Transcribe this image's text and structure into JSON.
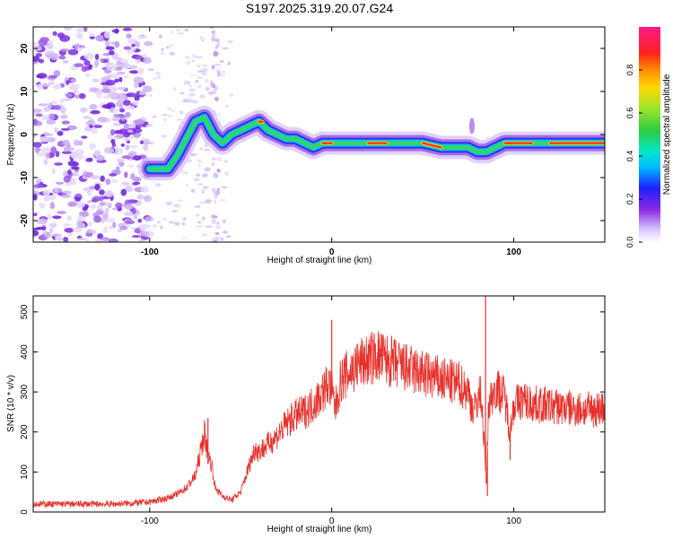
{
  "chart_data": [
    {
      "type": "heatmap",
      "title": "S197.2025.319.20.07.G24",
      "xlabel": "Height of straight line (km)",
      "ylabel": "Frequency (Hz)",
      "xlim": [
        -164,
        150
      ],
      "ylim": [
        -25,
        25
      ],
      "xticks": [
        -100,
        0,
        100
      ],
      "xtick_labels": [
        "-100",
        "0",
        "100"
      ],
      "yticks": [
        -20,
        -10,
        0,
        10,
        20
      ],
      "ytick_labels": [
        "-20",
        "-10",
        "0",
        "10",
        "20"
      ],
      "ridge": {
        "x": [
          -100,
          -95,
          -90,
          -85,
          -80,
          -75,
          -70,
          -65,
          -60,
          -55,
          -50,
          -45,
          -40,
          -35,
          -30,
          -25,
          -20,
          -15,
          -10,
          -5,
          0,
          10,
          20,
          30,
          40,
          50,
          60,
          70,
          75,
          80,
          85,
          90,
          95,
          100,
          110,
          120,
          130,
          140,
          150
        ],
        "y": [
          -8,
          -8,
          -8,
          -5,
          -1,
          3,
          4,
          0,
          -2,
          0,
          1,
          2,
          3,
          1,
          0,
          -1,
          -1,
          -2,
          -3,
          -2,
          -2,
          -2,
          -2,
          -2,
          -2,
          -2,
          -3,
          -3,
          -3,
          -4,
          -4,
          -3,
          -2,
          -2,
          -2,
          -2,
          -2,
          -2,
          -2
        ]
      },
      "colorbar": {
        "label": "Normalized spectral amplitude",
        "range": [
          0,
          1
        ],
        "ticks": [
          0.0,
          0.2,
          0.4,
          0.6,
          0.8
        ],
        "tick_labels": [
          "0.0",
          "0.2",
          "0.4",
          "0.6",
          "0.8"
        ]
      }
    },
    {
      "type": "line",
      "xlabel": "Height of straight line (km)",
      "ylabel": "SNR (10 * v/v)",
      "xlim": [
        -164,
        150
      ],
      "ylim": [
        0,
        540
      ],
      "xticks": [
        -100,
        0,
        100
      ],
      "xtick_labels": [
        "-100",
        "0",
        "100"
      ],
      "yticks": [
        0,
        100,
        200,
        300,
        400,
        500
      ],
      "ytick_labels": [
        "0",
        "100",
        "200",
        "300",
        "400",
        "500"
      ],
      "series": [
        {
          "name": "SNR",
          "color": "#e8302a",
          "x": [
            -164,
            -150,
            -140,
            -130,
            -120,
            -110,
            -100,
            -95,
            -90,
            -85,
            -80,
            -75,
            -72,
            -70,
            -68,
            -66,
            -64,
            -60,
            -55,
            -50,
            -45,
            -42,
            -40,
            -35,
            -30,
            -25,
            -20,
            -15,
            -10,
            -5,
            -2,
            0,
            2,
            5,
            10,
            15,
            20,
            25,
            30,
            35,
            40,
            50,
            60,
            70,
            75,
            78,
            80,
            82,
            84,
            85,
            86,
            88,
            90,
            95,
            98,
            100,
            105,
            110,
            120,
            130,
            140,
            150
          ],
          "y": [
            20,
            20,
            20,
            20,
            20,
            22,
            25,
            30,
            35,
            45,
            60,
            90,
            150,
            200,
            140,
            120,
            60,
            40,
            30,
            50,
            120,
            160,
            150,
            170,
            190,
            220,
            240,
            250,
            270,
            300,
            320,
            300,
            260,
            330,
            350,
            370,
            380,
            390,
            380,
            370,
            360,
            345,
            330,
            320,
            300,
            250,
            280,
            300,
            150,
            60,
            260,
            290,
            310,
            290,
            200,
            270,
            280,
            270,
            265,
            260,
            255,
            260
          ]
        }
      ],
      "spikes": {
        "x": [
          -68,
          0,
          84.5,
          85.5,
          98
        ],
        "y": [
          235,
          480,
          540,
          40,
          130
        ]
      }
    }
  ]
}
